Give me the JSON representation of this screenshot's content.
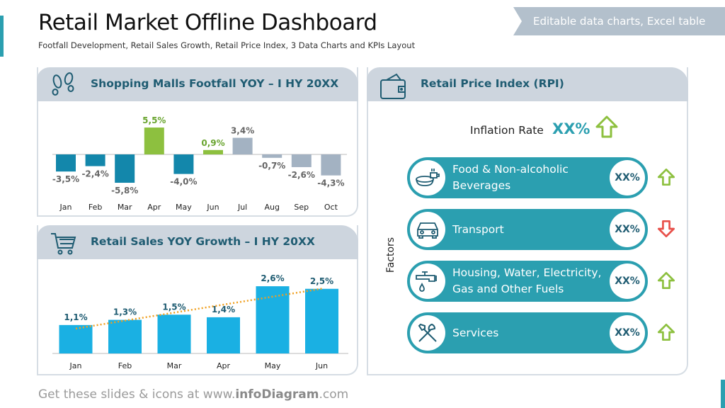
{
  "header": {
    "title": "Retail Market Offline Dashboard",
    "subtitle": "Footfall Development, Retail Sales Growth, Retail Price Index, 3 Data Charts and KPIs Layout",
    "banner": "Editable data charts, Excel table"
  },
  "footer": {
    "prefix": "Get these slides & icons at www.",
    "brand": "infoDiagram",
    ".suffix": "",
    "suffix": ".com"
  },
  "colors": {
    "teal": "#2b9fb0",
    "dark_blue": "#1387ab",
    "green": "#8dc03f",
    "gray": "#a3b2c2",
    "cyan": "#1ab0e3",
    "trend": "#f0a020",
    "down": "#e8504a"
  },
  "chart_data": [
    {
      "type": "bar",
      "title": "Shopping Malls Footfall YOY – I HY 20XX",
      "categories": [
        "Jan",
        "Feb",
        "Mar",
        "Apr",
        "May",
        "Jun",
        "Jul",
        "Aug",
        "Sep",
        "Oct"
      ],
      "values": [
        -3.5,
        -2.4,
        -5.8,
        5.5,
        -4.0,
        0.9,
        3.4,
        -0.7,
        -2.6,
        -4.3
      ],
      "labels": [
        "-3,5%",
        "-2,4%",
        "-5,8%",
        "5,5%",
        "-4,0%",
        "0,9%",
        "3,4%",
        "-0,7%",
        "-2,6%",
        "-4,3%"
      ],
      "bar_colors": [
        "#1387ab",
        "#1387ab",
        "#1387ab",
        "#8dc03f",
        "#1387ab",
        "#8dc03f",
        "#a3b2c2",
        "#a3b2c2",
        "#a3b2c2",
        "#a3b2c2"
      ]
    },
    {
      "type": "bar",
      "title": "Retail Sales YOY Growth – I HY 20XX",
      "categories": [
        "Jan",
        "Feb",
        "Mar",
        "Apr",
        "May",
        "Jun"
      ],
      "values": [
        1.1,
        1.3,
        1.5,
        1.4,
        2.6,
        2.5
      ],
      "labels": [
        "1,1%",
        "1,3%",
        "1,5%",
        "1,4%",
        "2,6%",
        "2,5%"
      ],
      "trendline": "linear dotted"
    }
  ],
  "rpi": {
    "title": "Retail Price Index (RPI)",
    "inflation_label": "Inflation Rate",
    "inflation_value": "XX%",
    "inflation_trend": "up",
    "axis_label": "Factors",
    "factors": [
      {
        "label": "Food & Non-alcoholic Beverages",
        "value": "XX%",
        "trend": "up",
        "icon": "food-icon"
      },
      {
        "label": "Transport",
        "value": "XX%",
        "trend": "down",
        "icon": "car-icon"
      },
      {
        "label": "Housing, Water, Electricity, Gas and Other Fuels",
        "value": "XX%",
        "trend": "up",
        "icon": "faucet-icon"
      },
      {
        "label": "Services",
        "value": "XX%",
        "trend": "up",
        "icon": "tools-icon"
      }
    ]
  }
}
